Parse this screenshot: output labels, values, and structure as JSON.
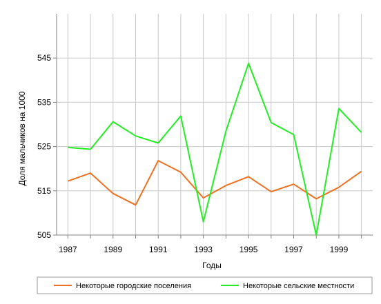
{
  "chart_data": {
    "type": "line",
    "xlabel": "Годы",
    "ylabel": "Доля мальчиков на 1000",
    "x": [
      1987,
      1988,
      1989,
      1990,
      1991,
      1992,
      1993,
      1994,
      1995,
      1996,
      1997,
      1998,
      1999,
      2000
    ],
    "xticks": [
      1987,
      1989,
      1991,
      1993,
      1995,
      1997,
      1999
    ],
    "ylim": [
      505,
      555
    ],
    "yticks": [
      505,
      515,
      525,
      535,
      545
    ],
    "grid": true,
    "legend_position": "bottom",
    "series": [
      {
        "name": "Некоторые городские поселения",
        "color": "#f07020",
        "values": [
          517.2,
          519.0,
          514.4,
          511.8,
          521.8,
          519.2,
          513.4,
          516.2,
          518.2,
          514.8,
          516.5,
          513.2,
          515.8,
          519.4
        ]
      },
      {
        "name": "Некоторые сельские местности",
        "color": "#22ee22",
        "values": [
          524.8,
          524.4,
          530.6,
          527.4,
          525.8,
          531.9,
          508.0,
          528.5,
          543.8,
          530.4,
          527.7,
          505.0,
          533.6,
          528.2
        ]
      }
    ]
  }
}
